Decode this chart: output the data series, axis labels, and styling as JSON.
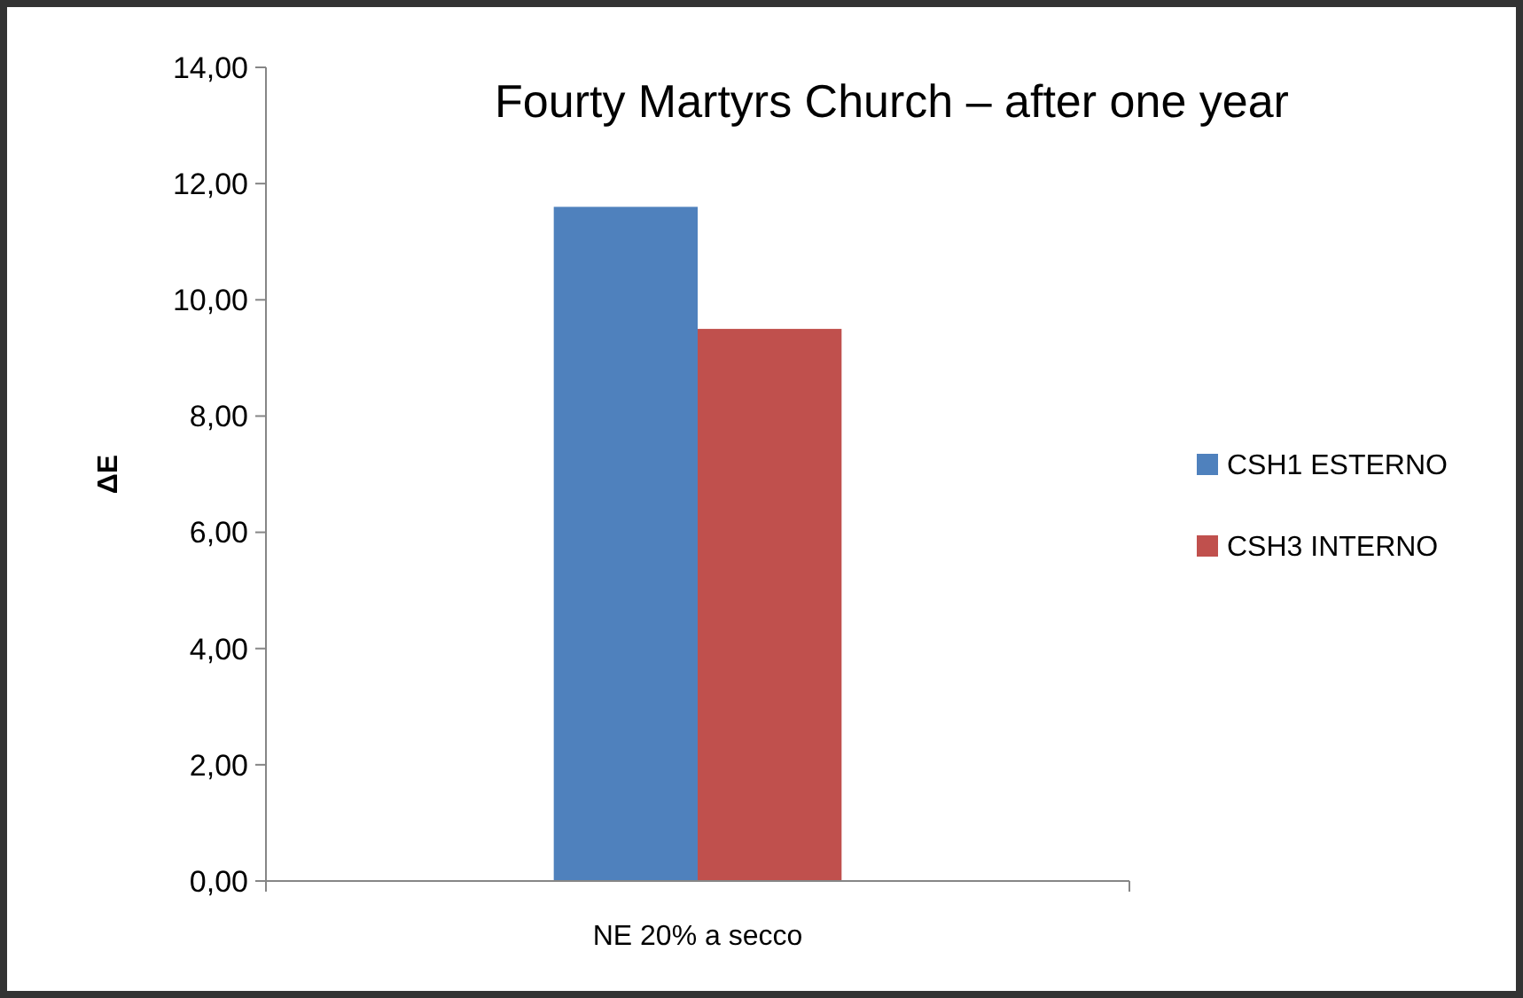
{
  "chart_data": {
    "type": "bar",
    "title": "Fourty Martyrs Church –  after one year",
    "ylabel": "ΔE",
    "categories": [
      "NE 20% a secco"
    ],
    "series": [
      {
        "name": "CSH1 ESTERNO",
        "color": "#4f81bd",
        "values": [
          11.6
        ]
      },
      {
        "name": "CSH3 INTERNO",
        "color": "#c0504d",
        "values": [
          9.5
        ]
      }
    ],
    "ylim": [
      0,
      14
    ],
    "yticks": [
      {
        "value": 0,
        "label": "0,00"
      },
      {
        "value": 2,
        "label": "2,00"
      },
      {
        "value": 4,
        "label": "4,00"
      },
      {
        "value": 6,
        "label": "6,00"
      },
      {
        "value": 8,
        "label": "8,00"
      },
      {
        "value": 10,
        "label": "10,00"
      },
      {
        "value": 12,
        "label": "12,00"
      },
      {
        "value": 14,
        "label": "14,00"
      }
    ],
    "grid": false,
    "legend": "right"
  }
}
